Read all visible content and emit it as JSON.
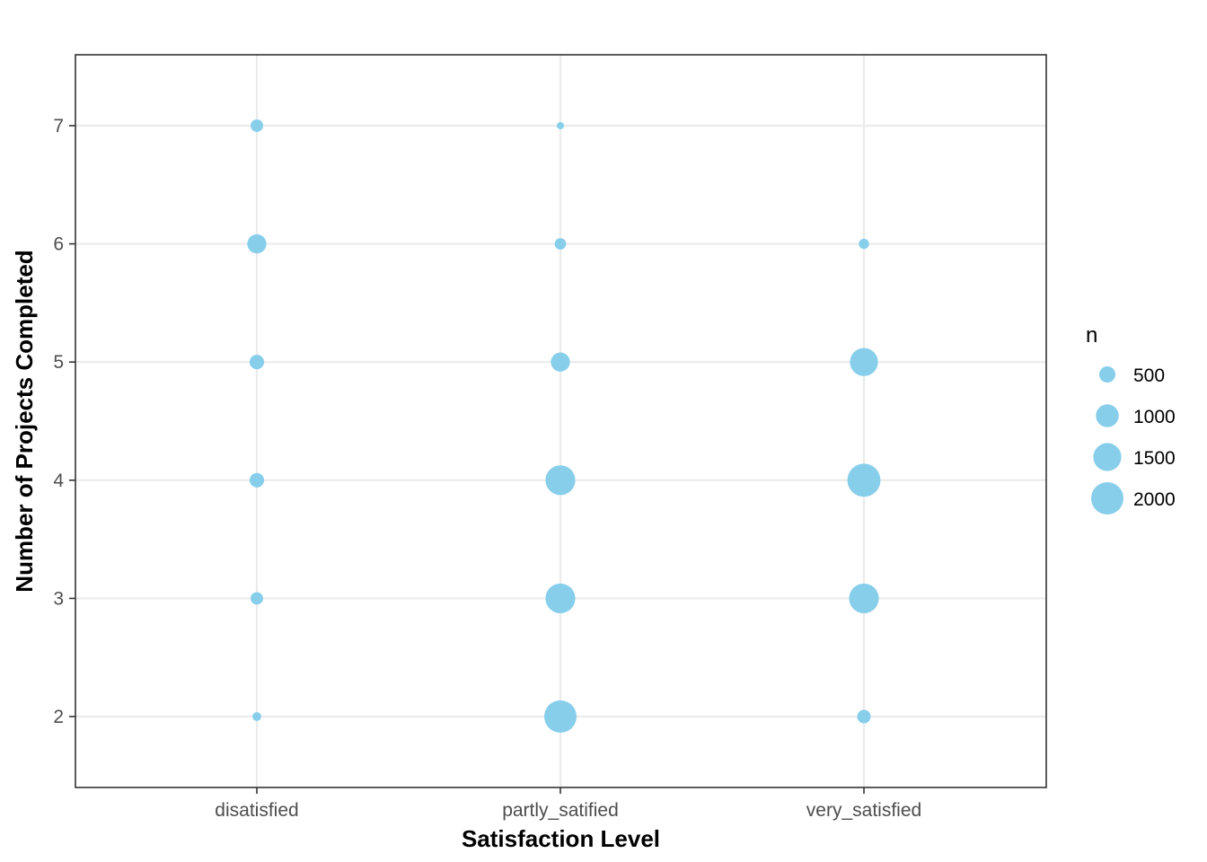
{
  "chart_data": {
    "type": "scatter",
    "xlabel": "Satisfaction Level",
    "ylabel": "Number of Projects Completed",
    "categories": [
      "disatisfied",
      "partly_satified",
      "very_satisfied"
    ],
    "y_ticks": [
      "2",
      "3",
      "4",
      "5",
      "6",
      "7"
    ],
    "ylim": [
      1.4,
      7.6
    ],
    "grid": true,
    "point_color": "#87CEEB",
    "size_variable": "n",
    "legend": {
      "title": "n",
      "position": "right",
      "entries": [
        {
          "label": "500",
          "value": 500
        },
        {
          "label": "1000",
          "value": 1000
        },
        {
          "label": "1500",
          "value": 1500
        },
        {
          "label": "2000",
          "value": 2000
        }
      ]
    },
    "points": [
      {
        "x": "disatisfied",
        "y": 7,
        "n": 300
      },
      {
        "x": "disatisfied",
        "y": 6,
        "n": 700
      },
      {
        "x": "disatisfied",
        "y": 5,
        "n": 400
      },
      {
        "x": "disatisfied",
        "y": 4,
        "n": 400
      },
      {
        "x": "disatisfied",
        "y": 3,
        "n": 300
      },
      {
        "x": "disatisfied",
        "y": 2,
        "n": 150
      },
      {
        "x": "partly_satified",
        "y": 7,
        "n": 50
      },
      {
        "x": "partly_satified",
        "y": 6,
        "n": 250
      },
      {
        "x": "partly_satified",
        "y": 5,
        "n": 700
      },
      {
        "x": "partly_satified",
        "y": 4,
        "n": 1700
      },
      {
        "x": "partly_satified",
        "y": 3,
        "n": 1700
      },
      {
        "x": "partly_satified",
        "y": 2,
        "n": 2000
      },
      {
        "x": "very_satisfied",
        "y": 6,
        "n": 200
      },
      {
        "x": "very_satisfied",
        "y": 5,
        "n": 1500
      },
      {
        "x": "very_satisfied",
        "y": 4,
        "n": 2100
      },
      {
        "x": "very_satisfied",
        "y": 3,
        "n": 1700
      },
      {
        "x": "very_satisfied",
        "y": 2,
        "n": 350
      }
    ]
  }
}
